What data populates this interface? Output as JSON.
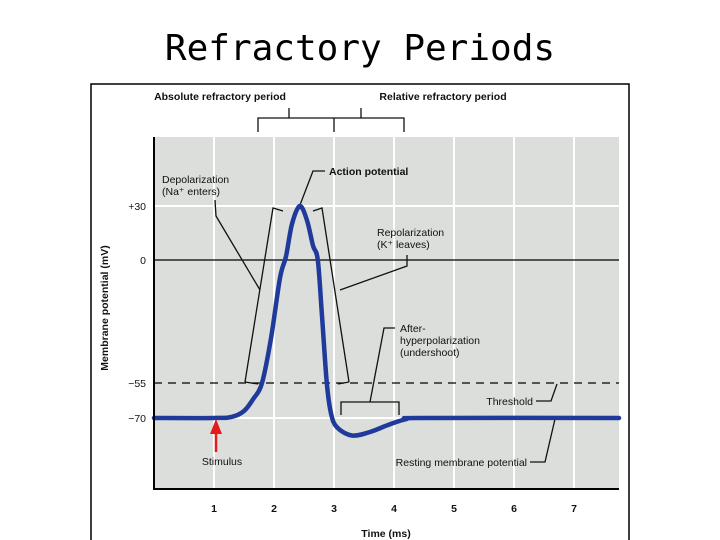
{
  "title": "Refractory Periods",
  "chart_data": {
    "type": "line",
    "xlabel": "Time (ms)",
    "ylabel": "Membrane potential (mV)",
    "x_ticks": [
      1,
      2,
      3,
      4,
      5,
      6,
      7
    ],
    "y_ticks": [
      {
        "value": 30,
        "label": "+30"
      },
      {
        "value": 0,
        "label": "0"
      },
      {
        "value": -55,
        "label": "−55"
      },
      {
        "value": -70,
        "label": "−70"
      }
    ],
    "xlim": [
      0,
      7.75
    ],
    "series": [
      {
        "color": "#1f3a9a",
        "points": [
          [
            0,
            -70
          ],
          [
            1,
            -70
          ],
          [
            1.3,
            -69.5
          ],
          [
            1.5,
            -67
          ],
          [
            1.65,
            -62
          ],
          [
            1.8,
            -55
          ],
          [
            1.95,
            -35
          ],
          [
            2.1,
            -8
          ],
          [
            2.2,
            2
          ],
          [
            2.3,
            20
          ],
          [
            2.43,
            30
          ],
          [
            2.55,
            22
          ],
          [
            2.65,
            8
          ],
          [
            2.73,
            0
          ],
          [
            2.8,
            -25
          ],
          [
            2.88,
            -55
          ],
          [
            2.95,
            -68
          ],
          [
            3.05,
            -74
          ],
          [
            3.3,
            -77.5
          ],
          [
            3.6,
            -76
          ],
          [
            3.9,
            -73
          ],
          [
            4.2,
            -70.5
          ],
          [
            4.5,
            -70
          ],
          [
            7.75,
            -70
          ]
        ]
      }
    ],
    "threshold": {
      "value": -55,
      "label": "Threshold",
      "style": "dashed"
    },
    "annotations": {
      "absolute": "Absolute refractory period",
      "relative": "Relative refractory period",
      "action_potential": "Action potential",
      "depol_1": "Depolarization",
      "depol_2": "(Na⁺ enters)",
      "repol_1": "Repolarization",
      "repol_2": "(K⁺ leaves)",
      "after_1": "After-",
      "after_2": "hyperpolarization",
      "after_3": "(undershoot)",
      "resting": "Resting membrane potential",
      "stimulus": "Stimulus"
    },
    "stimulus_time": 1.15,
    "colors": {
      "plot_bg": "#dcdedb",
      "stimulus": "#e41b1b"
    }
  }
}
